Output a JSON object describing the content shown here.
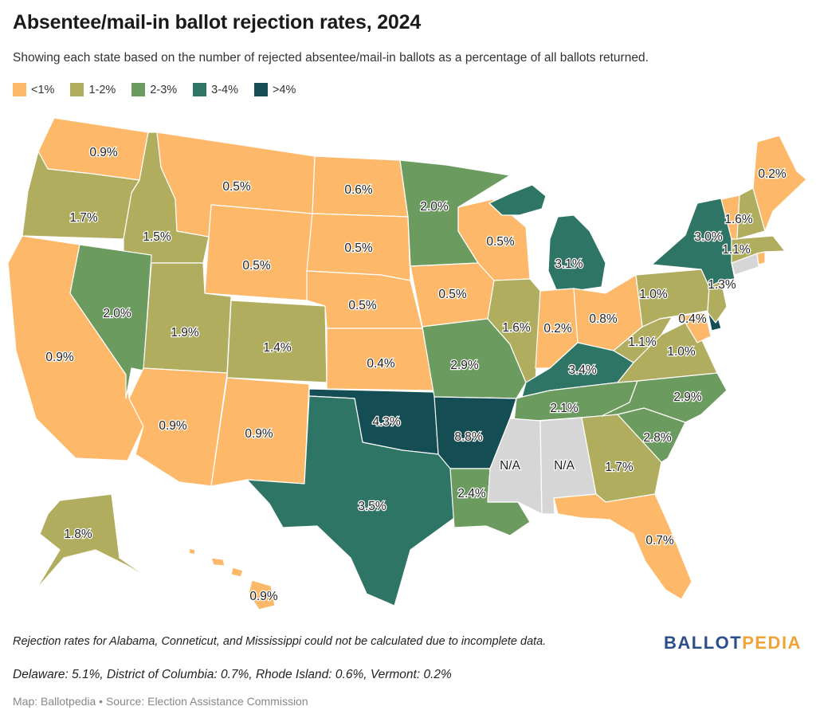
{
  "title": "Absentee/mail-in ballot rejection rates, 2024",
  "subtitle": "Showing each state based on the number of rejected absentee/mail-in ballots as a percentage of all ballots returned.",
  "legend": [
    {
      "label": "<1%",
      "color": "#fdb86a"
    },
    {
      "label": "1-2%",
      "color": "#b1ad5f"
    },
    {
      "label": "2-3%",
      "color": "#6b9b5f"
    },
    {
      "label": "3-4%",
      "color": "#2e7566"
    },
    {
      "label": ">4%",
      "color": "#144d53"
    }
  ],
  "na_color": "#d6d6d6",
  "states": {
    "WA": "0.9%",
    "OR": "1.7%",
    "CA": "0.9%",
    "ID": "1.5%",
    "NV": "2.0%",
    "MT": "0.5%",
    "WY": "0.5%",
    "UT": "1.9%",
    "AZ": "0.9%",
    "CO": "1.4%",
    "NM": "0.9%",
    "ND": "0.6%",
    "SD": "0.5%",
    "NE": "0.5%",
    "KS": "0.4%",
    "OK": "4.3%",
    "TX": "3.5%",
    "MN": "2.0%",
    "IA": "0.5%",
    "MO": "2.9%",
    "AR": "8.8%",
    "LA": "2.4%",
    "WI": "0.5%",
    "IL": "1.6%",
    "MI": "3.1%",
    "IN": "0.2%",
    "OH": "0.8%",
    "KY": "3.4%",
    "TN": "2.1%",
    "MS": "N/A",
    "AL": "N/A",
    "GA": "1.7%",
    "FL": "0.7%",
    "SC": "2.8%",
    "NC": "2.9%",
    "VA": "1.0%",
    "WV": "1.1%",
    "MD": "0.4%",
    "PA": "1.0%",
    "NJ": "1.3%",
    "NY": "3.0%",
    "NH": "1.6%",
    "MA": "1.1%",
    "ME": "0.2%",
    "AK": "1.8%",
    "HI": "0.9%"
  },
  "notes": {
    "na_note": "Rejection rates for Alabama, Conneticut, and Mississippi could not be calculated due to incomplete data.",
    "small_states": "Delaware: 5.1%, District of Columbia: 0.7%, Rhode Island: 0.6%, Vermont: 0.2%",
    "source": "Map: Ballotpedia • Source: Election Assistance Commission"
  },
  "logo": {
    "part1": "BALLOT",
    "part2": "PEDIA"
  }
}
